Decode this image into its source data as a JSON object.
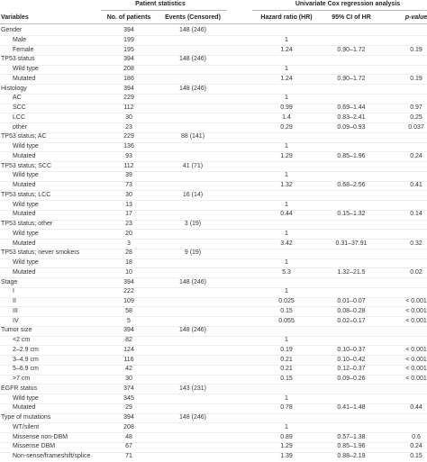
{
  "table": {
    "groups": [
      "Patient statistics",
      "Univariate Cox regression analysis"
    ],
    "columns": [
      "Variables",
      "No. of patients",
      "Events (Censored)",
      "Hazard ratio (HR)",
      "95% CI of HR",
      "p-value"
    ],
    "rows": [
      [
        "Gender",
        "394",
        "148 (246)",
        null,
        null,
        null
      ],
      [
        "Male",
        "199",
        null,
        "1",
        null,
        null
      ],
      [
        "Female",
        "195",
        null,
        "1.24",
        "0.90–1.72",
        "0.19"
      ],
      [
        "TP53 status",
        "394",
        "148 (246)",
        null,
        null,
        null
      ],
      [
        "Wild type",
        "208",
        null,
        "1",
        null,
        null
      ],
      [
        "Mutated",
        "186",
        null,
        "1.24",
        "0.90–1.72",
        "0.19"
      ],
      [
        "Histology",
        "394",
        "148 (246)",
        null,
        null,
        null
      ],
      [
        "AC",
        "229",
        null,
        "1",
        null,
        null
      ],
      [
        "SCC",
        "112",
        null,
        "0.99",
        "0.69–1.44",
        "0.97"
      ],
      [
        "LCC",
        "30",
        null,
        "1.4",
        "0.83–2.41",
        "0.25"
      ],
      [
        "other",
        "23",
        null,
        "0.29",
        "0.09–0.93",
        "0.037"
      ],
      [
        "TP53 status; AC",
        "229",
        "88 (141)",
        null,
        null,
        null
      ],
      [
        "Wild type",
        "136",
        null,
        "1",
        null,
        null
      ],
      [
        "Mutated",
        "93",
        null,
        "1.29",
        "0.85–1.96",
        "0.24"
      ],
      [
        "TP53 status; SCC",
        "112",
        "41 (71)",
        null,
        null,
        null
      ],
      [
        "Wild type",
        "39",
        null,
        "1",
        null,
        null
      ],
      [
        "Mutated",
        "73",
        null,
        "1.32",
        "0.68–2.56",
        "0.41"
      ],
      [
        "TP53 status; LCC",
        "30",
        "16 (14)",
        null,
        null,
        null
      ],
      [
        "Wild type",
        "13",
        null,
        "1",
        null,
        null
      ],
      [
        "Mutated",
        "17",
        null,
        "0.44",
        "0.15–1.32",
        "0.14"
      ],
      [
        "TP53 status; other",
        "23",
        "3 (19)",
        null,
        null,
        null
      ],
      [
        "Wild type",
        "20",
        null,
        "1",
        null,
        null
      ],
      [
        "Mutated",
        "3",
        null,
        "3.42",
        "0.31–37.91",
        "0.32"
      ],
      [
        "TP53 status; never smokers",
        "28",
        "9 (19)",
        null,
        null,
        null
      ],
      [
        "Wild type",
        "18",
        null,
        "1",
        null,
        null
      ],
      [
        "Mutated",
        "10",
        null,
        "5.3",
        "1.32–21.5",
        "0.02"
      ],
      [
        "Stage",
        "394",
        "148 (246)",
        null,
        null,
        null
      ],
      [
        "I",
        "222",
        null,
        "1",
        null,
        null
      ],
      [
        "II",
        "109",
        null,
        "0.025",
        "0.01–0.07",
        "< 0.001"
      ],
      [
        "III",
        "58",
        null,
        "0.15",
        "0.08–0.28",
        "< 0.001"
      ],
      [
        "IV",
        "5",
        null,
        "0.055",
        "0.02–0.17",
        "< 0.001"
      ],
      [
        "Tumor size",
        "394",
        "148 (246)",
        null,
        null,
        null
      ],
      [
        "<2 cm",
        "82",
        null,
        "1",
        null,
        null
      ],
      [
        "2–2.9 cm",
        "124",
        null,
        "0.19",
        "0.10–0.37",
        "< 0.001"
      ],
      [
        "3–4.9 cm",
        "116",
        null,
        "0.21",
        "0.10–0.42",
        "< 0.001"
      ],
      [
        "5–6.9 cm",
        "42",
        null,
        "0.21",
        "0.12–0.37",
        "< 0.001"
      ],
      [
        ">7 cm",
        "30",
        null,
        "0.15",
        "0.09–0.26",
        "< 0.001"
      ],
      [
        "EGFR status",
        "374",
        "143 (231)",
        null,
        null,
        null
      ],
      [
        "Wild type",
        "345",
        null,
        "1",
        null,
        null
      ],
      [
        "Mutated",
        "29",
        null,
        "0.78",
        "0.41–1.48",
        "0.44"
      ],
      [
        "Type of mutations",
        "394",
        "148 (246)",
        null,
        null,
        null
      ],
      [
        "WT/silent",
        "208",
        null,
        "1",
        null,
        null
      ],
      [
        "Missense non-DBM",
        "48",
        null,
        "0.89",
        "0.57–1.38",
        "0.6"
      ],
      [
        "Missense DBM",
        "67",
        null,
        "1.29",
        "0.85–1.96",
        "0.24"
      ],
      [
        "Non-sense/frameshift/splice",
        "71",
        null,
        "1.39",
        "0.88–2.19",
        "0.15"
      ]
    ]
  }
}
